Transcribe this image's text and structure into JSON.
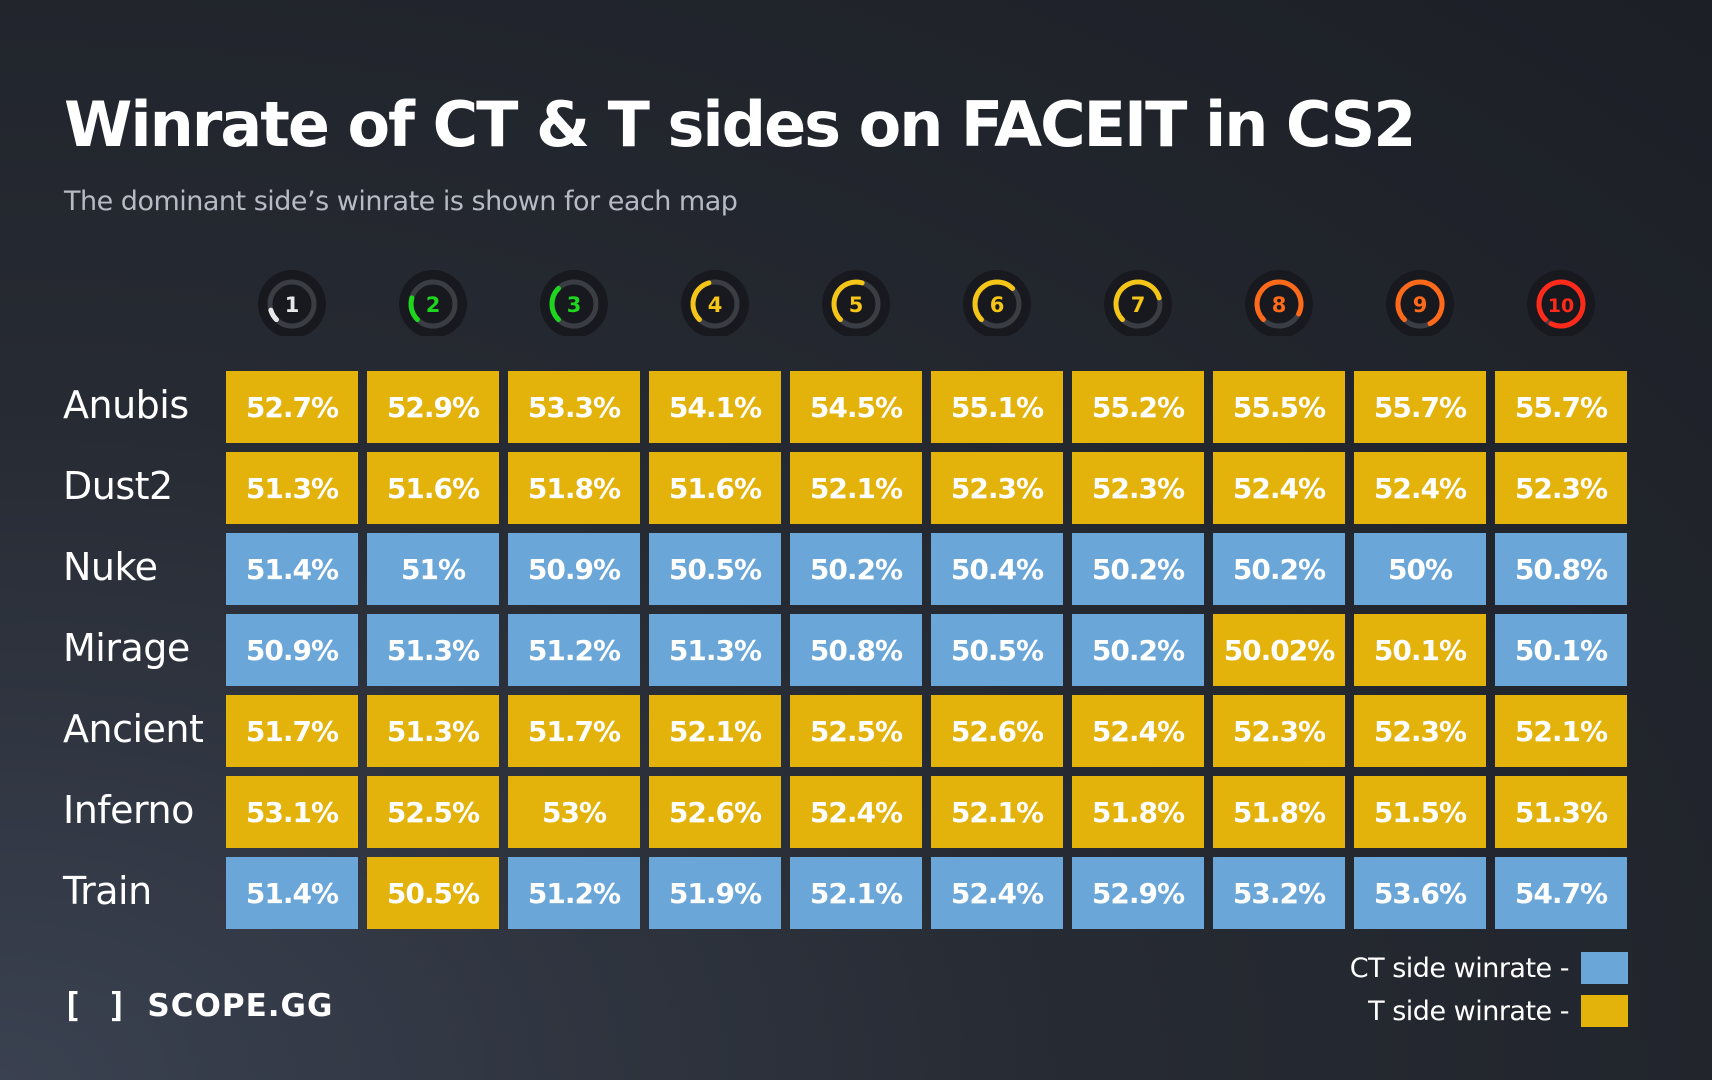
{
  "title": "Winrate of CT & T sides on FACEIT in CS2",
  "subtitle": "The dominant side’s winrate is shown for each map",
  "colors": {
    "ct": "#6aa6d7",
    "t": "#e3b20b"
  },
  "chart_data": {
    "type": "table",
    "title": "Winrate of CT & T sides on FACEIT in CS2",
    "columns": [
      "1",
      "2",
      "3",
      "4",
      "5",
      "6",
      "7",
      "8",
      "9",
      "10"
    ],
    "level_colors": [
      "#e8e8e8",
      "#1ed61e",
      "#1ed61e",
      "#f5c518",
      "#f5c518",
      "#f5c518",
      "#f5c518",
      "#ff6a1a",
      "#ff6a1a",
      "#ff2a1a"
    ],
    "level_fill_fraction": [
      0.08,
      0.17,
      0.25,
      0.33,
      0.42,
      0.5,
      0.58,
      0.7,
      0.8,
      0.95
    ],
    "rows": [
      {
        "map": "Anubis",
        "values": [
          "52.7%",
          "52.9%",
          "53.3%",
          "54.1%",
          "54.5%",
          "55.1%",
          "55.2%",
          "55.5%",
          "55.7%",
          "55.7%"
        ],
        "sides": [
          "T",
          "T",
          "T",
          "T",
          "T",
          "T",
          "T",
          "T",
          "T",
          "T"
        ]
      },
      {
        "map": "Dust2",
        "values": [
          "51.3%",
          "51.6%",
          "51.8%",
          "51.6%",
          "52.1%",
          "52.3%",
          "52.3%",
          "52.4%",
          "52.4%",
          "52.3%"
        ],
        "sides": [
          "T",
          "T",
          "T",
          "T",
          "T",
          "T",
          "T",
          "T",
          "T",
          "T"
        ]
      },
      {
        "map": "Nuke",
        "values": [
          "51.4%",
          "51%",
          "50.9%",
          "50.5%",
          "50.2%",
          "50.4%",
          "50.2%",
          "50.2%",
          "50%",
          "50.8%"
        ],
        "sides": [
          "CT",
          "CT",
          "CT",
          "CT",
          "CT",
          "CT",
          "CT",
          "CT",
          "CT",
          "CT"
        ]
      },
      {
        "map": "Mirage",
        "values": [
          "50.9%",
          "51.3%",
          "51.2%",
          "51.3%",
          "50.8%",
          "50.5%",
          "50.2%",
          "50.02%",
          "50.1%",
          "50.1%"
        ],
        "sides": [
          "CT",
          "CT",
          "CT",
          "CT",
          "CT",
          "CT",
          "CT",
          "T",
          "T",
          "CT"
        ]
      },
      {
        "map": "Ancient",
        "values": [
          "51.7%",
          "51.3%",
          "51.7%",
          "52.1%",
          "52.5%",
          "52.6%",
          "52.4%",
          "52.3%",
          "52.3%",
          "52.1%"
        ],
        "sides": [
          "T",
          "T",
          "T",
          "T",
          "T",
          "T",
          "T",
          "T",
          "T",
          "T"
        ]
      },
      {
        "map": "Inferno",
        "values": [
          "53.1%",
          "52.5%",
          "53%",
          "52.6%",
          "52.4%",
          "52.1%",
          "51.8%",
          "51.8%",
          "51.5%",
          "51.3%"
        ],
        "sides": [
          "T",
          "T",
          "T",
          "T",
          "T",
          "T",
          "T",
          "T",
          "T",
          "T"
        ]
      },
      {
        "map": "Train",
        "values": [
          "51.4%",
          "50.5%",
          "51.2%",
          "51.9%",
          "52.1%",
          "52.4%",
          "52.9%",
          "53.2%",
          "53.6%",
          "54.7%"
        ],
        "sides": [
          "CT",
          "T",
          "CT",
          "CT",
          "CT",
          "CT",
          "CT",
          "CT",
          "CT",
          "CT"
        ]
      }
    ],
    "legend": [
      {
        "label": "CT side winrate -",
        "side": "CT"
      },
      {
        "label": "T side winrate -",
        "side": "T"
      }
    ]
  },
  "legend": {
    "ct_label": "CT side winrate -",
    "t_label": "T side winrate -"
  },
  "logo": {
    "text": "SCOPE.GG",
    "mark": "[ ]"
  }
}
